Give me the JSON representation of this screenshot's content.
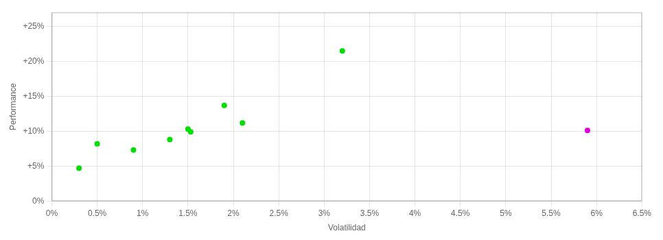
{
  "chart_data": {
    "type": "scatter",
    "xlabel": "Volatilidad",
    "ylabel": "Performance",
    "xlim": [
      0,
      0.065
    ],
    "ylim": [
      0,
      0.27
    ],
    "xticks": [
      {
        "value": 0.0,
        "label": "0%"
      },
      {
        "value": 0.005,
        "label": "0.5%"
      },
      {
        "value": 0.01,
        "label": "1%"
      },
      {
        "value": 0.015,
        "label": "1.5%"
      },
      {
        "value": 0.02,
        "label": "2%"
      },
      {
        "value": 0.025,
        "label": "2.5%"
      },
      {
        "value": 0.03,
        "label": "3%"
      },
      {
        "value": 0.035,
        "label": "3.5%"
      },
      {
        "value": 0.04,
        "label": "4%"
      },
      {
        "value": 0.045,
        "label": "4.5%"
      },
      {
        "value": 0.05,
        "label": "5%"
      },
      {
        "value": 0.055,
        "label": "5.5%"
      },
      {
        "value": 0.06,
        "label": "6%"
      },
      {
        "value": 0.065,
        "label": "6.5%"
      }
    ],
    "yticks": [
      {
        "value": 0.0,
        "label": "0%"
      },
      {
        "value": 0.05,
        "label": "+5%"
      },
      {
        "value": 0.1,
        "label": "+10%"
      },
      {
        "value": 0.15,
        "label": "+15%"
      },
      {
        "value": 0.2,
        "label": "+20%"
      },
      {
        "value": 0.25,
        "label": "+25%"
      }
    ],
    "grid": true,
    "series": [
      {
        "color": "#00dd00",
        "x": [
          0.003,
          0.005,
          0.009,
          0.013,
          0.015,
          0.0153,
          0.019,
          0.021,
          0.032
        ],
        "values": [
          0.047,
          0.082,
          0.073,
          0.088,
          0.103,
          0.099,
          0.137,
          0.112,
          0.215
        ]
      },
      {
        "color": "#dd00dd",
        "x": [
          0.059
        ],
        "values": [
          0.101
        ]
      }
    ]
  }
}
